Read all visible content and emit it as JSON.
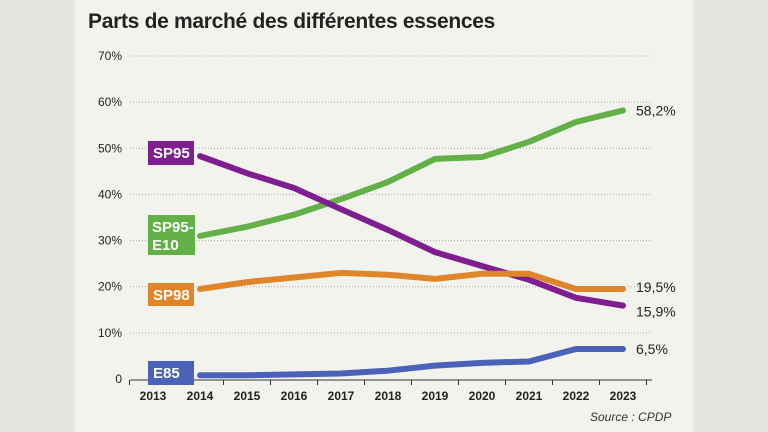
{
  "chart_data": {
    "type": "line",
    "title": "Parts de marché des différentes essences",
    "source": "Source : CPDP",
    "x_ticks": [
      "2013",
      "2014",
      "2015",
      "2016",
      "2017",
      "2018",
      "2019",
      "2020",
      "2021",
      "2022",
      "2023"
    ],
    "y_ticks": [
      "0",
      "10%",
      "20%",
      "30%",
      "40%",
      "50%",
      "60%",
      "70%"
    ],
    "ylim": [
      0,
      70
    ],
    "grid": "horizontal dotted",
    "x": [
      2014,
      2015,
      2016,
      2017,
      2018,
      2019,
      2020,
      2021,
      2022,
      2023
    ],
    "series": [
      {
        "name": "SP95-E10",
        "color": "#62b047",
        "values": [
          31,
          33,
          35.6,
          39,
          42.7,
          47.7,
          48.1,
          51.4,
          55.7,
          58.2
        ],
        "end_label": "58,2%"
      },
      {
        "name": "SP95",
        "color": "#7f1f8f",
        "values": [
          48.3,
          44.6,
          41.4,
          36.8,
          32.3,
          27.5,
          24.5,
          21.5,
          17.6,
          15.9
        ],
        "end_label": "15,9%"
      },
      {
        "name": "SP98",
        "color": "#e0862a",
        "values": [
          19.5,
          21,
          22,
          23,
          22.6,
          21.7,
          22.8,
          22.8,
          19.5,
          19.5
        ],
        "end_label": "19,5%"
      },
      {
        "name": "E85",
        "color": "#4a63b8",
        "values": [
          0.8,
          0.8,
          1,
          1.2,
          1.8,
          2.9,
          3.5,
          3.8,
          6.5,
          6.5
        ],
        "end_label": "6,5%"
      }
    ]
  }
}
